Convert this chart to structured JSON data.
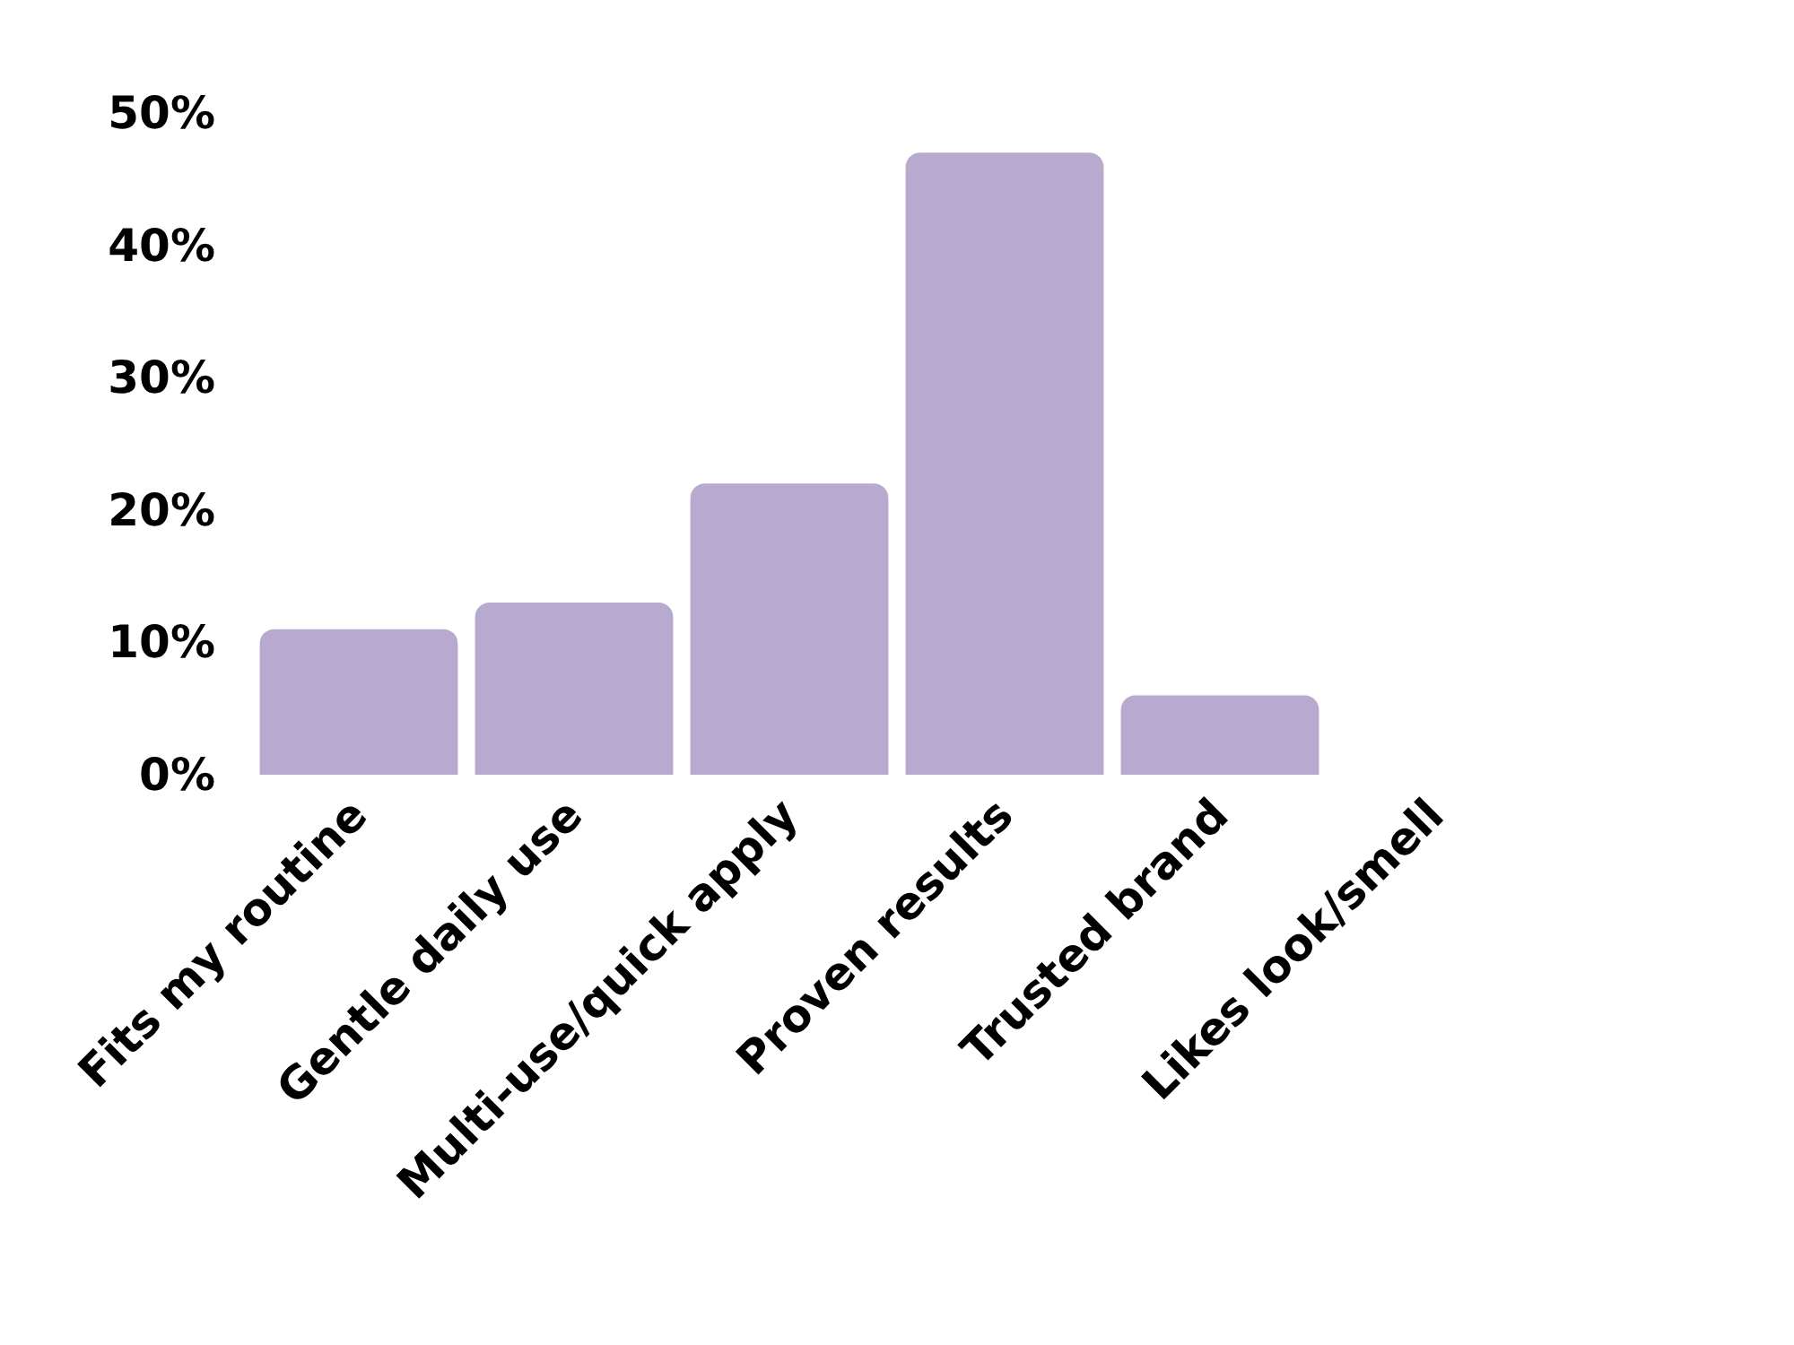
{
  "chart_data": {
    "type": "bar",
    "categories": [
      "Fits my routine",
      "Gentle daily use",
      "Multi-use/quick apply",
      "Proven results",
      "Trusted brand",
      "Likes look/smell"
    ],
    "values": [
      11,
      13,
      22,
      47,
      6,
      0
    ],
    "color": "#b8a9cf",
    "ylim": [
      0,
      50
    ],
    "yticks": [
      {
        "value": 0,
        "label": "0%"
      },
      {
        "value": 10,
        "label": "10%"
      },
      {
        "value": 20,
        "label": "20%"
      },
      {
        "value": 30,
        "label": "30%"
      },
      {
        "value": 40,
        "label": "40%"
      },
      {
        "value": 50,
        "label": "50%"
      }
    ],
    "grid": false
  }
}
